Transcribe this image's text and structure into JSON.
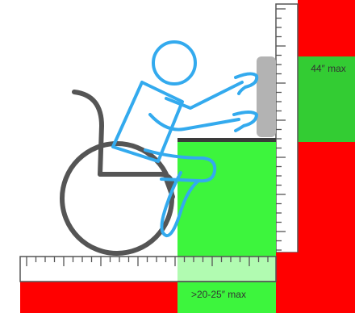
{
  "diagram": {
    "reach_height_label": "44″ max",
    "reach_depth_label": ">20-25″ max",
    "colors": {
      "allowed": "#3df53d",
      "allowed_dark": "#33cc33",
      "prohibited": "#ff0000",
      "figure_outline": "#33aaee",
      "wheelchair": "#555555",
      "counter_top": "#3a3a3a",
      "counter_front": "#b3b3b3",
      "ruler_fill": "#ffffff",
      "ruler_stroke": "#555555"
    }
  }
}
